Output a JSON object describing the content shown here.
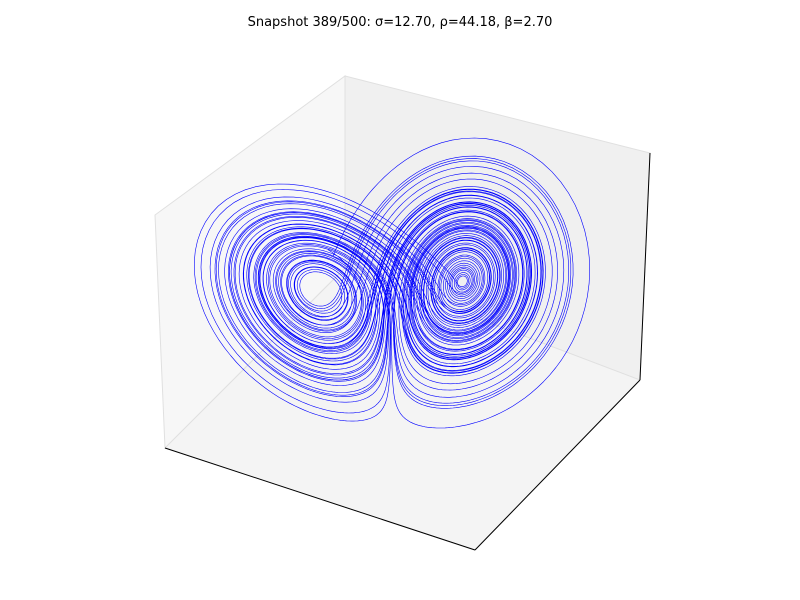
{
  "figure": {
    "title": "Snapshot 389/500: σ=12.70, ρ=44.18, β=2.70"
  },
  "chart_data": {
    "type": "line",
    "projection": "3d",
    "title": "Snapshot 389/500: σ=12.70, ρ=44.18, β=2.70",
    "system": "lorenz",
    "parameters": {
      "sigma": 12.7,
      "rho": 44.18,
      "beta": 2.7
    },
    "snapshot": {
      "index": 389,
      "total": 500
    },
    "axes_visible": false,
    "grid": false,
    "series": [
      {
        "color": "#0000ff"
      }
    ],
    "colors": {
      "pane_back": "#f0f0f0",
      "pane_side": "#f7f7f7",
      "pane_floor": "#f4f4f4",
      "pane_edge": "#e0e0e0",
      "axis_line": "#000000"
    }
  }
}
